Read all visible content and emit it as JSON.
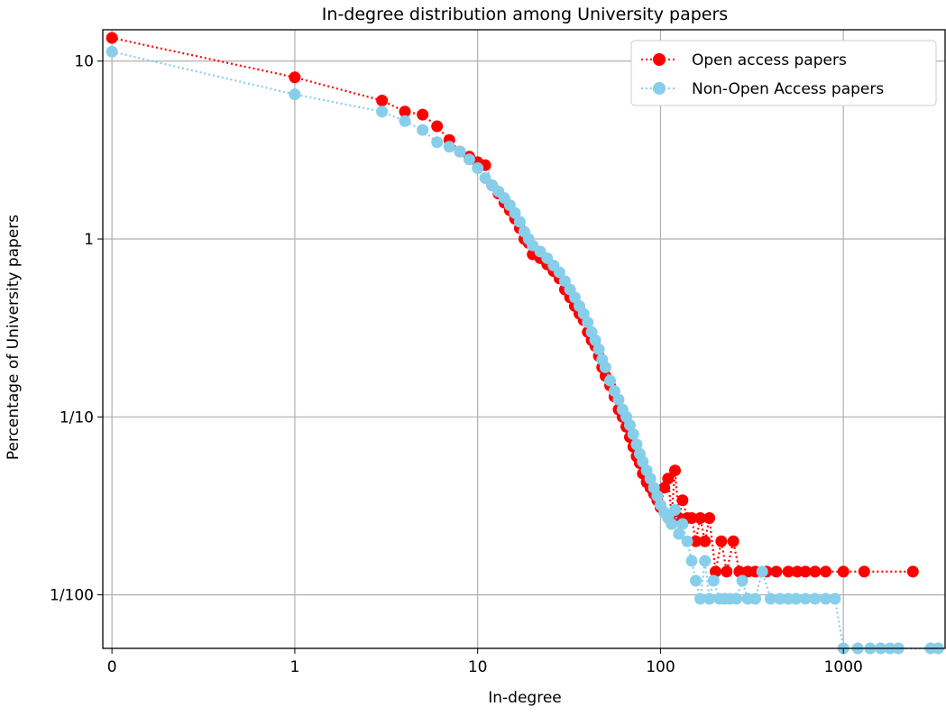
{
  "chart_data": {
    "type": "line",
    "title": "In-degree distribution among University papers",
    "xlabel": "In-degree",
    "ylabel": "Percentage of University papers",
    "x_scale": "symlog",
    "y_scale": "log",
    "xlim": [
      -0.05,
      3600
    ],
    "ylim": [
      0.005,
      15
    ],
    "x_ticks": [
      0,
      1,
      10,
      100,
      1000
    ],
    "x_tick_labels": [
      "0",
      "1",
      "10",
      "100",
      "1000"
    ],
    "y_ticks": [
      10,
      1,
      0.1,
      0.01
    ],
    "y_tick_labels": [
      "10",
      "1",
      "1/10",
      "1/100"
    ],
    "grid": true,
    "legend_position": "top-right",
    "series": [
      {
        "name": "Open access papers",
        "color": "#ff0000",
        "marker": "circle",
        "linestyle": "dotted",
        "x": [
          0,
          1,
          3,
          4,
          5,
          6,
          7,
          8,
          9,
          10,
          11,
          12,
          13,
          14,
          15,
          16,
          17,
          18,
          19,
          20,
          22,
          24,
          26,
          28,
          30,
          32,
          34,
          36,
          38,
          40,
          42,
          44,
          46,
          48,
          50,
          53,
          56,
          59,
          62,
          65,
          68,
          71,
          74,
          77,
          80,
          84,
          88,
          92,
          96,
          100,
          105,
          110,
          115,
          120,
          126,
          132,
          140,
          148,
          156,
          165,
          175,
          185,
          200,
          215,
          230,
          250,
          270,
          300,
          330,
          380,
          430,
          500,
          560,
          620,
          700,
          800,
          1000,
          1300,
          2400
        ],
        "y": [
          13.5,
          8.1,
          6.0,
          5.2,
          5.0,
          4.3,
          3.6,
          3.1,
          2.9,
          2.7,
          2.6,
          2.0,
          1.8,
          1.6,
          1.45,
          1.3,
          1.15,
          1.0,
          0.95,
          0.82,
          0.78,
          0.72,
          0.66,
          0.6,
          0.52,
          0.47,
          0.42,
          0.38,
          0.35,
          0.3,
          0.27,
          0.25,
          0.22,
          0.19,
          0.17,
          0.15,
          0.13,
          0.11,
          0.1,
          0.088,
          0.077,
          0.068,
          0.06,
          0.055,
          0.048,
          0.043,
          0.04,
          0.037,
          0.034,
          0.031,
          0.04,
          0.045,
          0.028,
          0.05,
          0.027,
          0.034,
          0.027,
          0.027,
          0.02,
          0.027,
          0.02,
          0.027,
          0.0135,
          0.02,
          0.0135,
          0.02,
          0.0135,
          0.0135,
          0.0135,
          0.0135,
          0.0135,
          0.0135,
          0.0135,
          0.0135,
          0.0135,
          0.0135,
          0.0135,
          0.0135,
          0.0135
        ]
      },
      {
        "name": "Non-Open Access papers",
        "color": "#87ceeb",
        "marker": "circle",
        "linestyle": "dotted",
        "x": [
          0,
          1,
          3,
          4,
          5,
          6,
          7,
          8,
          9,
          10,
          11,
          12,
          13,
          14,
          15,
          16,
          17,
          18,
          19,
          20,
          22,
          24,
          26,
          28,
          30,
          32,
          34,
          36,
          38,
          40,
          42,
          44,
          46,
          48,
          50,
          53,
          56,
          59,
          62,
          65,
          68,
          71,
          74,
          77,
          80,
          84,
          88,
          92,
          96,
          100,
          105,
          110,
          115,
          120,
          126,
          132,
          140,
          148,
          156,
          165,
          175,
          185,
          195,
          210,
          225,
          240,
          260,
          280,
          300,
          330,
          360,
          400,
          450,
          500,
          550,
          620,
          700,
          800,
          900,
          1000,
          1200,
          1400,
          1600,
          1800,
          2000,
          3000,
          3300
        ],
        "y": [
          11.3,
          6.5,
          5.2,
          4.6,
          4.1,
          3.5,
          3.3,
          3.1,
          2.8,
          2.5,
          2.2,
          2.0,
          1.85,
          1.7,
          1.55,
          1.4,
          1.25,
          1.1,
          1.0,
          0.92,
          0.85,
          0.78,
          0.71,
          0.65,
          0.58,
          0.52,
          0.47,
          0.42,
          0.38,
          0.34,
          0.3,
          0.27,
          0.24,
          0.21,
          0.19,
          0.16,
          0.14,
          0.125,
          0.11,
          0.1,
          0.09,
          0.08,
          0.07,
          0.062,
          0.056,
          0.05,
          0.045,
          0.04,
          0.036,
          0.032,
          0.029,
          0.027,
          0.025,
          0.03,
          0.022,
          0.025,
          0.02,
          0.0155,
          0.012,
          0.0095,
          0.0155,
          0.0095,
          0.012,
          0.0095,
          0.0095,
          0.0095,
          0.0095,
          0.012,
          0.0095,
          0.0095,
          0.0135,
          0.0095,
          0.0095,
          0.0095,
          0.0095,
          0.0095,
          0.0095,
          0.0095,
          0.0095,
          0.0047,
          0.0047,
          0.0047,
          0.0047,
          0.0047,
          0.0047,
          0.0047,
          0.0047
        ]
      }
    ]
  }
}
